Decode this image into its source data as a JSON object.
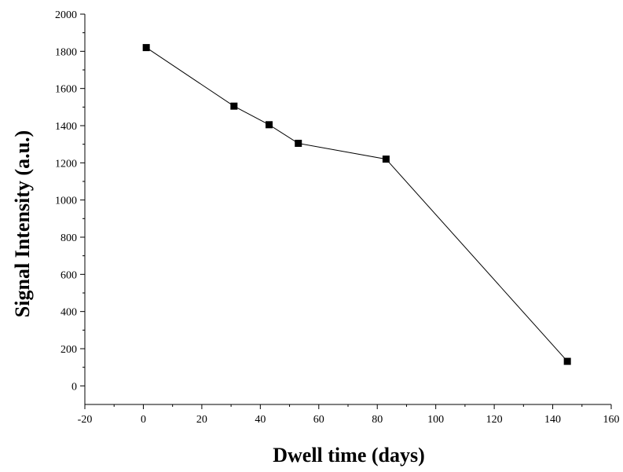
{
  "chart_data": {
    "type": "line",
    "title": "",
    "xlabel": "Dwell time (days)",
    "ylabel": "Signal Intensity (a.u.)",
    "xlim": [
      -20,
      160
    ],
    "ylim": [
      -100,
      2000
    ],
    "xticks": [
      -20,
      0,
      20,
      40,
      60,
      80,
      100,
      120,
      140,
      160
    ],
    "yticks": [
      0,
      200,
      400,
      600,
      800,
      1000,
      1200,
      1400,
      1600,
      1800,
      2000
    ],
    "grid": false,
    "legend": "none",
    "series": [
      {
        "color": "#000000",
        "marker": "square",
        "x": [
          1,
          31,
          43,
          53,
          83,
          145
        ],
        "y": [
          1820,
          1505,
          1405,
          1305,
          1220,
          132
        ]
      }
    ]
  }
}
